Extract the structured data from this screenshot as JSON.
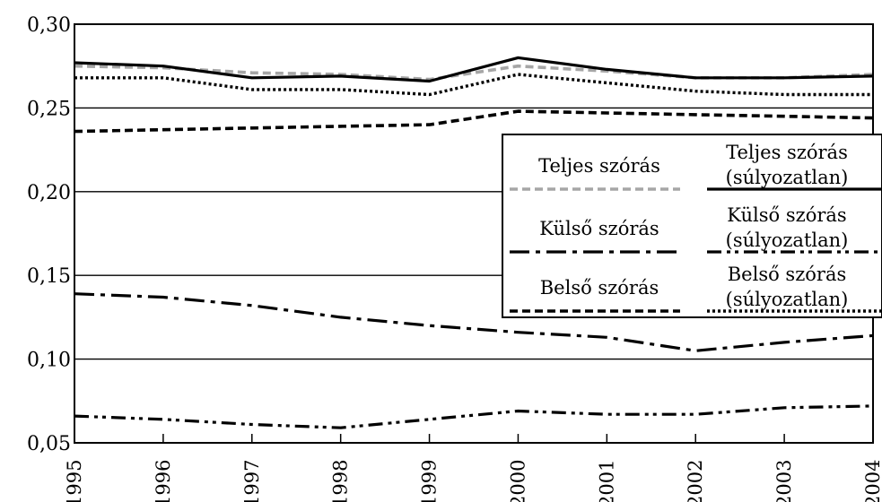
{
  "chart_data": {
    "type": "line",
    "x": [
      1995,
      1996,
      1997,
      1998,
      1999,
      2000,
      2001,
      2002,
      2003,
      2004
    ],
    "xtick_labels": [
      "1995",
      "1996",
      "1997",
      "1998",
      "1999",
      "2000",
      "2001",
      "2002",
      "2003",
      "2004"
    ],
    "ytick_labels": [
      "0,30",
      "0,25",
      "0,20",
      "0,15",
      "0,10",
      "0,05"
    ],
    "yticks": [
      0.3,
      0.25,
      0.2,
      0.15,
      0.1,
      0.05
    ],
    "ylim": [
      0.05,
      0.3
    ],
    "xlim": [
      1995,
      2004
    ],
    "grid": "horizontal",
    "legend_position": "right",
    "series": [
      {
        "name": "Teljes szórás",
        "style": "dashed",
        "color": "#a6a6a6",
        "values": [
          0.275,
          0.274,
          0.271,
          0.27,
          0.267,
          0.275,
          0.272,
          0.268,
          0.268,
          0.27
        ]
      },
      {
        "name": "Teljes szórás (súlyozatlan)",
        "style": "solid",
        "color": "#000000",
        "values": [
          0.277,
          0.275,
          0.268,
          0.269,
          0.266,
          0.28,
          0.273,
          0.268,
          0.268,
          0.269
        ]
      },
      {
        "name": "Külső szórás",
        "style": "dashdot",
        "color": "#000000",
        "values": [
          0.139,
          0.137,
          0.132,
          0.125,
          0.12,
          0.116,
          0.113,
          0.105,
          0.11,
          0.114
        ]
      },
      {
        "name": "Külső szórás (súlyozatlan)",
        "style": "dashdotdot",
        "color": "#000000",
        "values": [
          0.066,
          0.064,
          0.061,
          0.059,
          0.064,
          0.069,
          0.067,
          0.067,
          0.071,
          0.072
        ]
      },
      {
        "name": "Belső szórás",
        "style": "dashed",
        "color": "#000000",
        "values": [
          0.236,
          0.237,
          0.238,
          0.239,
          0.24,
          0.248,
          0.247,
          0.246,
          0.245,
          0.244
        ]
      },
      {
        "name": "Belső szórás (súlyozatlan)",
        "style": "dotted",
        "color": "#000000",
        "values": [
          0.268,
          0.268,
          0.261,
          0.261,
          0.258,
          0.27,
          0.265,
          0.26,
          0.258,
          0.258
        ]
      }
    ],
    "legend": {
      "left_labels": [
        "Teljes szórás",
        "Külső szórás",
        "Belső szórás"
      ],
      "right_labels": [
        [
          "Teljes szórás",
          "(súlyozatlan)"
        ],
        [
          "Külső szórás",
          "(súlyozatlan)"
        ],
        [
          "Belső szórás",
          "(súlyozatlan)"
        ]
      ]
    }
  }
}
